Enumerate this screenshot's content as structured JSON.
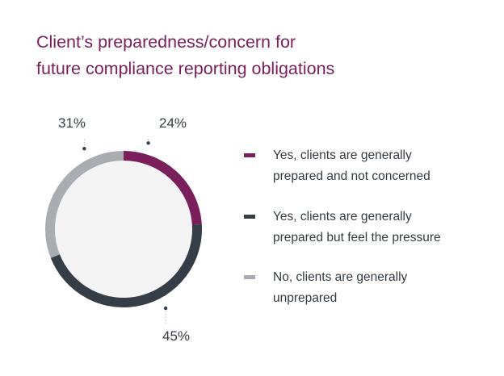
{
  "chart_data": {
    "type": "pie",
    "title": [
      "Client’s preparedness/concern for",
      "future compliance reporting obligations"
    ],
    "slices": [
      {
        "label_lines": [
          "Yes, clients are generally",
          "prepared and not concerned"
        ],
        "value": 24,
        "value_label": "24%",
        "color": "#7a1f5c"
      },
      {
        "label_lines": [
          "Yes, clients are generally",
          "prepared but feel the pressure"
        ],
        "value": 45,
        "value_label": "45%",
        "color": "#353e47"
      },
      {
        "label_lines": [
          "No, clients are generally",
          "unprepared"
        ],
        "value": 31,
        "value_label": "31%",
        "color": "#a9adb1"
      }
    ],
    "center_fill": "#f4f4f4",
    "legend_position": "right"
  }
}
